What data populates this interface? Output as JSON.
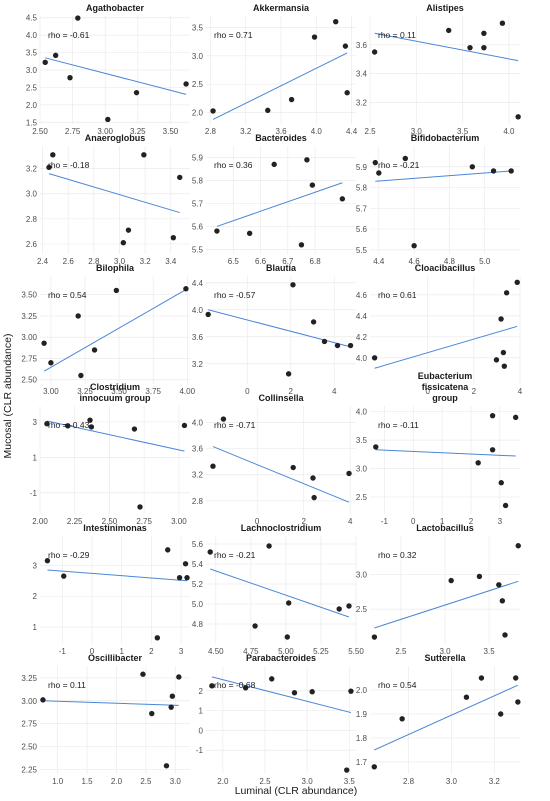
{
  "figure": {
    "xlabel": "Luminal (CLR abundance)",
    "ylabel": "Mucosal (CLR abundance)",
    "point_color": "#222222",
    "line_color": "#4a86d8",
    "grid_color": "#ebebeb"
  },
  "chart_data": [
    {
      "type": "scatter",
      "title": [
        "Agathobacter"
      ],
      "rho_label": "rho = -0.61",
      "xlim": [
        2.5,
        3.65
      ],
      "ylim": [
        1.45,
        4.55
      ],
      "xticks": [
        2.5,
        2.75,
        3.0,
        3.25,
        3.5
      ],
      "xticklabels": [
        "2.50",
        "2.75",
        "3.00",
        "3.25",
        "3.50"
      ],
      "yticks": [
        1.5,
        2.0,
        2.5,
        3.0,
        3.5,
        4.0,
        4.5
      ],
      "yticklabels": [
        "1.5",
        "2.0",
        "2.5",
        "3.0",
        "3.5",
        "4.0",
        "4.5"
      ],
      "x": [
        2.54,
        2.62,
        2.73,
        2.79,
        3.02,
        3.24,
        3.62
      ],
      "y": [
        3.22,
        3.42,
        2.78,
        4.49,
        1.58,
        2.35,
        2.6
      ],
      "fit": [
        [
          2.54,
          3.35
        ],
        [
          3.62,
          2.3
        ]
      ]
    },
    {
      "type": "scatter",
      "title": [
        "Akkermansia"
      ],
      "rho_label": "rho = 0.71",
      "xlim": [
        2.75,
        4.45
      ],
      "ylim": [
        1.8,
        3.7
      ],
      "xticks": [
        2.8,
        3.2,
        3.6,
        4.0,
        4.4
      ],
      "xticklabels": [
        "2.8",
        "3.2",
        "3.6",
        "4.0",
        "4.4"
      ],
      "yticks": [
        2.0,
        2.5,
        3.0,
        3.5
      ],
      "yticklabels": [
        "2.0",
        "2.5",
        "3.0",
        "3.5"
      ],
      "x": [
        2.83,
        3.45,
        3.72,
        3.98,
        4.22,
        4.33,
        4.35
      ],
      "y": [
        2.03,
        2.04,
        2.23,
        3.33,
        3.6,
        3.17,
        2.35
      ],
      "fit": [
        [
          2.83,
          1.88
        ],
        [
          4.35,
          3.05
        ]
      ]
    },
    {
      "type": "scatter",
      "title": [
        "Alistipes"
      ],
      "rho_label": "rho = 0.11",
      "xlim": [
        2.5,
        4.12
      ],
      "ylim": [
        3.05,
        3.8
      ],
      "xticks": [
        2.5,
        3.0,
        3.5,
        4.0
      ],
      "xticklabels": [
        "2.5",
        "3.0",
        "3.5",
        "4.0"
      ],
      "yticks": [
        3.2,
        3.4,
        3.6
      ],
      "yticklabels": [
        "3.2",
        "3.4",
        "3.6"
      ],
      "x": [
        2.55,
        3.35,
        3.58,
        3.73,
        3.73,
        3.93,
        4.1
      ],
      "y": [
        3.55,
        3.7,
        3.58,
        3.58,
        3.68,
        3.75,
        3.1
      ],
      "fit": [
        [
          2.55,
          3.68
        ],
        [
          4.1,
          3.49
        ]
      ]
    },
    {
      "type": "scatter",
      "title": [
        "Anaeroglobus"
      ],
      "rho_label": "rho = -0.18",
      "xlim": [
        2.38,
        3.55
      ],
      "ylim": [
        2.52,
        3.38
      ],
      "xticks": [
        2.4,
        2.6,
        2.8,
        3.0,
        3.2,
        3.4
      ],
      "xticklabels": [
        "2.4",
        "2.6",
        "2.8",
        "3.0",
        "3.2",
        "3.4"
      ],
      "yticks": [
        2.6,
        2.8,
        3.0,
        3.2
      ],
      "yticklabels": [
        "2.6",
        "2.8",
        "3.0",
        "3.2"
      ],
      "x": [
        2.45,
        2.48,
        3.03,
        3.07,
        3.19,
        3.42,
        3.47
      ],
      "y": [
        3.21,
        3.31,
        2.61,
        2.71,
        3.31,
        2.65,
        3.13
      ],
      "fit": [
        [
          2.45,
          3.16
        ],
        [
          3.47,
          2.85
        ]
      ]
    },
    {
      "type": "scatter",
      "title": [
        "Bacteroides"
      ],
      "rho_label": "rho = 0.36",
      "xlim": [
        6.4,
        6.95
      ],
      "ylim": [
        5.48,
        5.95
      ],
      "xticks": [
        6.5,
        6.6,
        6.7,
        6.8
      ],
      "xticklabels": [
        "6.5",
        "6.6",
        "6.7",
        "6.8"
      ],
      "yticks": [
        5.5,
        5.6,
        5.7,
        5.8,
        5.9
      ],
      "yticklabels": [
        "5.5",
        "5.6",
        "5.7",
        "5.8",
        "5.9"
      ],
      "x": [
        6.44,
        6.56,
        6.65,
        6.75,
        6.77,
        6.79,
        6.9
      ],
      "y": [
        5.58,
        5.57,
        5.87,
        5.52,
        5.89,
        5.78,
        5.72
      ],
      "fit": [
        [
          6.44,
          5.6
        ],
        [
          6.9,
          5.79
        ]
      ]
    },
    {
      "type": "scatter",
      "title": [
        "Bifidobacterium"
      ],
      "rho_label": "rho = -0.21",
      "xlim": [
        4.35,
        5.2
      ],
      "ylim": [
        5.48,
        6.0
      ],
      "xticks": [
        4.4,
        4.6,
        4.8,
        5.0
      ],
      "xticklabels": [
        "4.4",
        "4.6",
        "4.8",
        "5.0"
      ],
      "yticks": [
        5.5,
        5.6,
        5.7,
        5.8,
        5.9
      ],
      "yticklabels": [
        "5.5",
        "5.6",
        "5.7",
        "5.8",
        "5.9"
      ],
      "x": [
        4.38,
        4.4,
        4.55,
        4.6,
        4.93,
        5.05,
        5.15
      ],
      "y": [
        5.92,
        5.87,
        5.94,
        5.52,
        5.9,
        5.88,
        5.88
      ],
      "fit": [
        [
          4.38,
          5.83
        ],
        [
          5.15,
          5.88
        ]
      ]
    },
    {
      "type": "scatter",
      "title": [
        "Bilophila"
      ],
      "rho_label": "rho = 0.54",
      "xlim": [
        2.92,
        4.02
      ],
      "ylim": [
        2.45,
        3.72
      ],
      "xticks": [
        3.0,
        3.25,
        3.5,
        3.75,
        4.0
      ],
      "xticklabels": [
        "3.00",
        "3.25",
        "3.50",
        "3.75",
        "4.00"
      ],
      "yticks": [
        2.5,
        2.75,
        3.0,
        3.25,
        3.5
      ],
      "yticklabels": [
        "2.50",
        "2.75",
        "3.00",
        "3.25",
        "3.50"
      ],
      "x": [
        2.95,
        3.0,
        3.2,
        3.22,
        3.32,
        3.48,
        3.99
      ],
      "y": [
        2.93,
        2.7,
        3.25,
        2.55,
        2.85,
        3.55,
        3.57
      ],
      "fit": [
        [
          2.95,
          2.6
        ],
        [
          3.99,
          3.56
        ]
      ]
    },
    {
      "type": "scatter",
      "title": [
        "Blautia"
      ],
      "rho_label": "rho = -0.57",
      "xlim": [
        -1.9,
        5.0
      ],
      "ylim": [
        2.9,
        4.5
      ],
      "xticks": [
        0,
        2,
        4
      ],
      "xticklabels": [
        "0",
        "2",
        "4"
      ],
      "yticks": [
        3.2,
        3.6,
        4.0,
        4.4
      ],
      "yticklabels": [
        "3.2",
        "3.6",
        "4.0",
        "4.4"
      ],
      "x": [
        -1.8,
        1.9,
        2.1,
        3.05,
        3.55,
        4.15,
        4.75
      ],
      "y": [
        3.93,
        3.05,
        4.37,
        3.82,
        3.53,
        3.47,
        3.47
      ],
      "fit": [
        [
          -1.8,
          4.0
        ],
        [
          4.75,
          3.45
        ]
      ]
    },
    {
      "type": "scatter",
      "title": [
        "Cloacibacillus"
      ],
      "rho_label": "rho = 0.61",
      "xlim": [
        -2.5,
        4.0
      ],
      "ylim": [
        3.75,
        4.78
      ],
      "xticks": [
        0,
        2,
        4
      ],
      "xticklabels": [
        "0",
        "2",
        "4"
      ],
      "yticks": [
        4.0,
        4.2,
        4.4,
        4.6
      ],
      "yticklabels": [
        "4.0",
        "4.2",
        "4.4",
        "4.6"
      ],
      "x": [
        -2.3,
        2.98,
        3.18,
        3.28,
        3.32,
        3.42,
        3.88
      ],
      "y": [
        4.0,
        3.98,
        4.37,
        4.05,
        3.92,
        4.62,
        4.72
      ],
      "fit": [
        [
          -2.3,
          3.9
        ],
        [
          3.88,
          4.3
        ]
      ]
    },
    {
      "type": "scatter",
      "title": [
        "Clostridium",
        "innocuum group"
      ],
      "rho_label": "rho = -0.43",
      "xlim": [
        2.0,
        3.08
      ],
      "ylim": [
        -2.2,
        3.9
      ],
      "xticks": [
        2.0,
        2.25,
        2.5,
        2.75,
        3.0
      ],
      "xticklabels": [
        "2.00",
        "2.25",
        "2.50",
        "2.75",
        "3.00"
      ],
      "yticks": [
        -1,
        1,
        3
      ],
      "yticklabels": [
        "-1",
        "1",
        "3"
      ],
      "x": [
        2.05,
        2.2,
        2.36,
        2.37,
        2.68,
        2.72,
        3.04
      ],
      "y": [
        2.9,
        2.78,
        3.1,
        2.72,
        2.6,
        -1.8,
        2.8
      ],
      "fit": [
        [
          2.05,
          3.05
        ],
        [
          3.04,
          1.35
        ]
      ]
    },
    {
      "type": "scatter",
      "title": [
        "Collinsella"
      ],
      "rho_label": "rho = -0.71",
      "xlim": [
        -2.2,
        4.25
      ],
      "ylim": [
        2.6,
        4.25
      ],
      "xticks": [
        0,
        2,
        4
      ],
      "xticklabels": [
        "0",
        "2",
        "4"
      ],
      "yticks": [
        2.8,
        3.2,
        3.6,
        4.0
      ],
      "yticklabels": [
        "2.8",
        "3.2",
        "3.6",
        "4.0"
      ],
      "x": [
        -1.9,
        -1.45,
        1.55,
        2.4,
        2.45,
        3.95
      ],
      "y": [
        3.33,
        4.05,
        3.31,
        3.15,
        2.85,
        3.22
      ],
      "fit": [
        [
          -1.9,
          3.63
        ],
        [
          3.95,
          2.78
        ]
      ]
    },
    {
      "type": "scatter",
      "title": [
        "Eubacterium",
        "fissicatena",
        "group"
      ],
      "rho_label": "rho = -0.11",
      "xlim": [
        -1.5,
        3.7
      ],
      "ylim": [
        2.2,
        4.1
      ],
      "xticks": [
        -1,
        0,
        1,
        2,
        3
      ],
      "xticklabels": [
        "-1",
        "0",
        "1",
        "2",
        "3"
      ],
      "yticks": [
        2.5,
        3.0,
        3.5,
        4.0
      ],
      "yticklabels": [
        "2.5",
        "3.0",
        "3.5",
        "4.0"
      ],
      "x": [
        -1.3,
        2.25,
        2.75,
        2.75,
        3.05,
        3.2,
        3.55
      ],
      "y": [
        3.38,
        3.1,
        3.93,
        3.33,
        2.75,
        2.35,
        3.9
      ],
      "fit": [
        [
          -1.3,
          3.33
        ],
        [
          3.55,
          3.22
        ]
      ]
    },
    {
      "type": "scatter",
      "title": [
        "Intestinimonas"
      ],
      "rho_label": "rho = -0.29",
      "xlim": [
        -1.75,
        3.3
      ],
      "ylim": [
        0.45,
        3.95
      ],
      "xticks": [
        -1,
        0,
        1,
        2,
        3
      ],
      "xticklabels": [
        "-1",
        "0",
        "1",
        "2",
        "3"
      ],
      "yticks": [
        1,
        2,
        3
      ],
      "yticklabels": [
        "1",
        "2",
        "3"
      ],
      "x": [
        -1.5,
        -0.95,
        2.2,
        2.55,
        2.95,
        3.15,
        3.2
      ],
      "y": [
        3.15,
        2.65,
        0.65,
        3.5,
        2.6,
        3.05,
        2.6
      ],
      "fit": [
        [
          -1.5,
          2.85
        ],
        [
          3.2,
          2.5
        ]
      ]
    },
    {
      "type": "scatter",
      "title": [
        "Lachnoclostridium"
      ],
      "rho_label": "rho = -0.21",
      "xlim": [
        4.43,
        5.5
      ],
      "ylim": [
        4.6,
        5.68
      ],
      "xticks": [
        4.5,
        4.75,
        5.0,
        5.25,
        5.5
      ],
      "xticklabels": [
        "4.50",
        "4.75",
        "5.00",
        "5.25",
        "5.50"
      ],
      "yticks": [
        4.8,
        5.0,
        5.2,
        5.4,
        5.6
      ],
      "yticklabels": [
        "4.8",
        "5.0",
        "5.2",
        "5.4",
        "5.6"
      ],
      "x": [
        4.46,
        4.78,
        4.88,
        5.01,
        5.02,
        5.38,
        5.45
      ],
      "y": [
        5.52,
        4.78,
        5.58,
        4.67,
        5.01,
        4.95,
        4.98
      ],
      "fit": [
        [
          4.46,
          5.35
        ],
        [
          5.45,
          4.87
        ]
      ]
    },
    {
      "type": "scatter",
      "title": [
        "Lactobacillus"
      ],
      "rho_label": "rho = 0.32",
      "xlim": [
        2.15,
        3.85
      ],
      "ylim": [
        2.0,
        3.55
      ],
      "xticks": [
        2.5,
        3.0,
        3.5
      ],
      "xticklabels": [
        "2.5",
        "3.0",
        "3.5"
      ],
      "yticks": [
        2.5,
        3.0
      ],
      "yticklabels": [
        "2.5",
        "3.0"
      ],
      "x": [
        2.2,
        3.07,
        3.39,
        3.61,
        3.65,
        3.68,
        3.83
      ],
      "y": [
        2.1,
        2.91,
        2.97,
        2.85,
        2.62,
        2.13,
        3.41
      ],
      "fit": [
        [
          2.2,
          2.23
        ],
        [
          3.83,
          2.9
        ]
      ]
    },
    {
      "type": "scatter",
      "title": [
        "Oscillibacter"
      ],
      "rho_label": "rho = 0.11",
      "xlim": [
        0.7,
        3.25
      ],
      "ylim": [
        2.2,
        3.38
      ],
      "xticks": [
        1.0,
        1.5,
        2.0,
        2.5,
        3.0
      ],
      "xticklabels": [
        "1.0",
        "1.5",
        "2.0",
        "2.5",
        "3.0"
      ],
      "yticks": [
        2.25,
        2.5,
        2.75,
        3.0,
        3.25
      ],
      "yticklabels": [
        "2.25",
        "2.50",
        "2.75",
        "3.00",
        "3.25"
      ],
      "x": [
        0.75,
        2.45,
        2.6,
        2.85,
        2.93,
        2.95,
        3.06
      ],
      "y": [
        3.01,
        3.29,
        2.86,
        2.29,
        2.93,
        3.05,
        3.26
      ],
      "fit": [
        [
          0.75,
          3.0
        ],
        [
          3.06,
          2.95
        ]
      ]
    },
    {
      "type": "scatter",
      "title": [
        "Parabacteroides"
      ],
      "rho_label": "rho = -0.68",
      "xlim": [
        1.8,
        3.58
      ],
      "ylim": [
        -2.2,
        3.25
      ],
      "xticks": [
        2.0,
        2.5,
        3.0,
        3.5
      ],
      "xticklabels": [
        "2.0",
        "2.5",
        "3.0",
        "3.5"
      ],
      "yticks": [
        -1,
        0,
        1,
        2
      ],
      "yticklabels": [
        "-1",
        "0",
        "1",
        "2"
      ],
      "x": [
        1.87,
        2.27,
        2.58,
        2.85,
        3.06,
        3.47,
        3.52
      ],
      "y": [
        2.25,
        2.15,
        2.6,
        1.9,
        1.95,
        -2.0,
        1.98
      ],
      "fit": [
        [
          1.87,
          2.7
        ],
        [
          3.52,
          0.9
        ]
      ]
    },
    {
      "type": "scatter",
      "title": [
        "Sutterella"
      ],
      "rho_label": "rho = 0.54",
      "xlim": [
        2.62,
        3.32
      ],
      "ylim": [
        1.65,
        2.1
      ],
      "xticks": [
        2.8,
        3.0,
        3.2
      ],
      "xticklabels": [
        "2.8",
        "3.0",
        "3.2"
      ],
      "yticks": [
        1.7,
        1.8,
        1.9,
        2.0
      ],
      "yticklabels": [
        "1.7",
        "1.8",
        "1.9",
        "2.0"
      ],
      "x": [
        2.64,
        2.77,
        3.07,
        3.14,
        3.23,
        3.3,
        3.31
      ],
      "y": [
        1.68,
        1.88,
        1.97,
        2.05,
        1.9,
        2.05,
        1.95
      ],
      "fit": [
        [
          2.64,
          1.75
        ],
        [
          3.31,
          2.02
        ]
      ]
    }
  ]
}
